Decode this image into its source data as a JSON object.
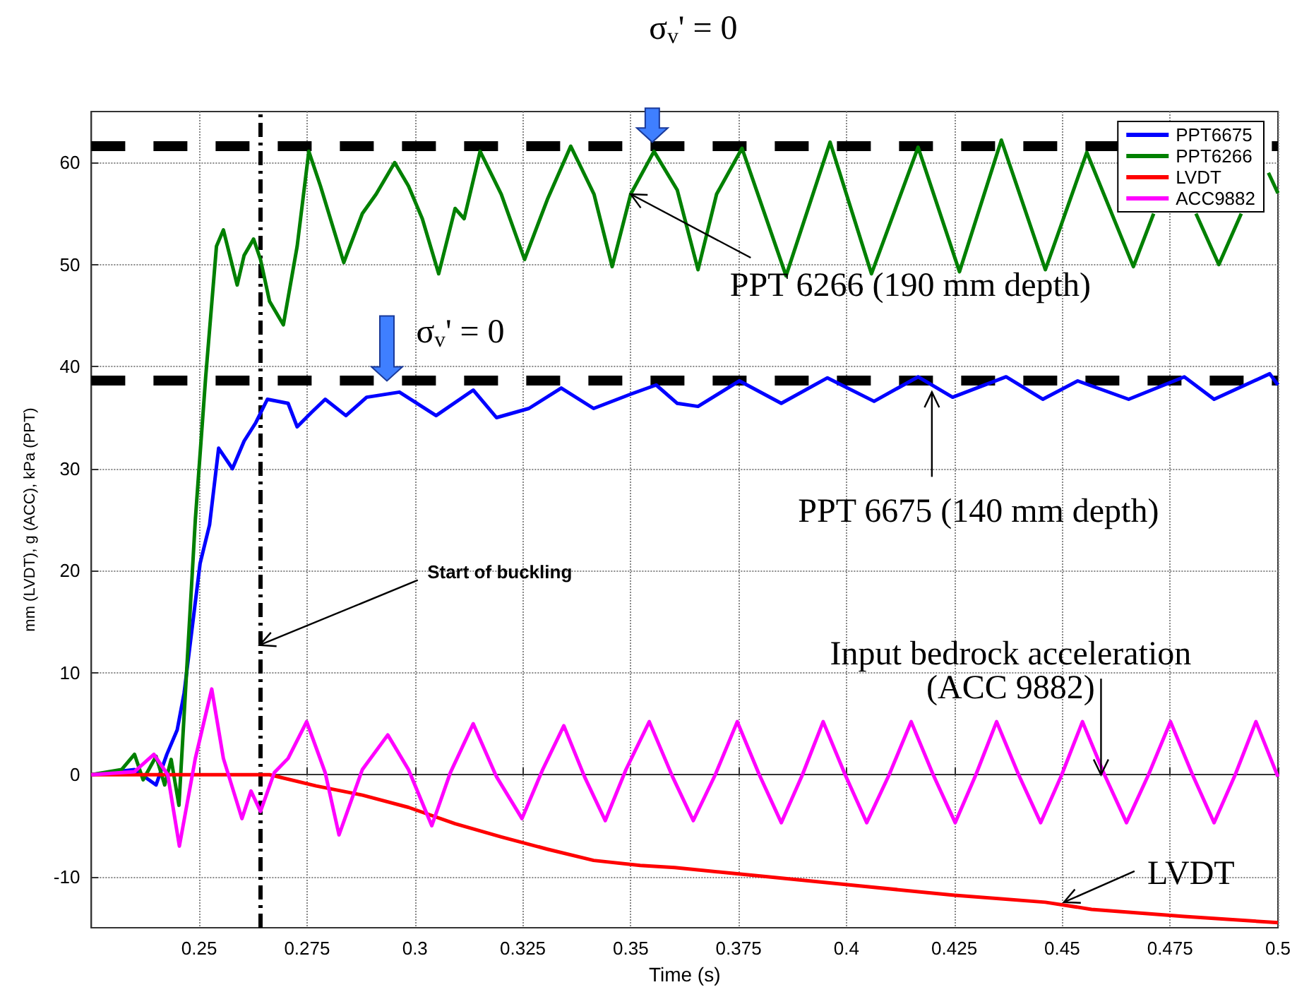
{
  "chart_data": {
    "type": "line",
    "xlabel": "Time (s)",
    "ylabel": "mm (LVDT), g (ACC), kPa (PPT)",
    "xlim": [
      0.225,
      0.5
    ],
    "xticks": [
      0.25,
      0.275,
      0.3,
      0.325,
      0.35,
      0.375,
      0.4,
      0.425,
      0.45,
      0.475,
      0.5
    ],
    "ylim": [
      -15,
      65
    ],
    "yticks": [
      -10,
      0,
      10,
      20,
      30,
      40,
      50,
      60
    ],
    "grid": true,
    "legend": "top right",
    "marker": "none",
    "line_style": "solid",
    "series": [
      {
        "name": "PPT6675",
        "color": "#0000ff",
        "x": [
          0.225,
          0.235,
          0.24,
          0.2425,
          0.2449,
          0.2465,
          0.2502,
          0.2524,
          0.2545,
          0.2577,
          0.2604,
          0.2631,
          0.2658,
          0.2706,
          0.2727,
          0.276,
          0.2792,
          0.284,
          0.2888,
          0.2964,
          0.3049,
          0.3135,
          0.3189,
          0.3264,
          0.3339,
          0.3414,
          0.35,
          0.3559,
          0.3608,
          0.3656,
          0.3752,
          0.3849,
          0.3956,
          0.4064,
          0.4166,
          0.4246,
          0.437,
          0.4455,
          0.4536,
          0.4654,
          0.4783,
          0.4852,
          0.4981,
          0.5
        ],
        "values": [
          0,
          0.5,
          -1,
          2,
          4.4,
          8,
          20.7,
          24.5,
          32,
          30,
          32.7,
          34.5,
          36.8,
          36.4,
          34.1,
          35.5,
          36.8,
          35.2,
          37,
          37.5,
          35.2,
          37.7,
          35,
          35.9,
          37.9,
          35.9,
          37.3,
          38.2,
          36.4,
          36.1,
          38.6,
          36.4,
          38.9,
          36.6,
          39,
          37,
          39,
          36.8,
          38.6,
          36.8,
          39,
          36.8,
          39.3,
          38.2
        ]
      },
      {
        "name": "PPT6266",
        "color": "#008000",
        "x": [
          0.225,
          0.232,
          0.235,
          0.237,
          0.24,
          0.242,
          0.2435,
          0.2453,
          0.2491,
          0.2515,
          0.254,
          0.2556,
          0.2588,
          0.2604,
          0.2626,
          0.2642,
          0.2663,
          0.2695,
          0.2727,
          0.2754,
          0.2781,
          0.2835,
          0.2878,
          0.291,
          0.2953,
          0.2985,
          0.3017,
          0.3055,
          0.3093,
          0.3114,
          0.3151,
          0.32,
          0.3254,
          0.3307,
          0.3361,
          0.3415,
          0.3457,
          0.35,
          0.3554,
          0.3608,
          0.3656,
          0.3699,
          0.3758,
          0.386,
          0.3962,
          0.4058,
          0.4166,
          0.4262,
          0.4359,
          0.4461,
          0.4557,
          0.4665,
          0.4712,
          0.4761,
          0.481,
          0.4863,
          0.4915,
          0.4955,
          0.4978,
          0.5
        ],
        "values": [
          0,
          0.5,
          2,
          -0.5,
          1.8,
          -1,
          1.5,
          -3,
          25,
          39,
          51.8,
          53.4,
          48,
          50.9,
          52.5,
          50.5,
          46.4,
          44.1,
          51.8,
          61.1,
          57.7,
          50.2,
          55,
          56.9,
          60,
          57.7,
          54.5,
          49.1,
          55.5,
          54.5,
          61.1,
          56.9,
          50.5,
          56.4,
          61.6,
          56.9,
          49.8,
          56.9,
          61.1,
          57.3,
          49.5,
          56.9,
          61.4,
          48.9,
          62,
          49.1,
          61.5,
          49.3,
          62.2,
          49.5,
          61,
          49.8,
          55,
          null,
          55,
          50,
          55,
          null,
          59,
          57
        ]
      },
      {
        "name": "LVDT",
        "color": "#ff0000",
        "x": [
          0.225,
          0.25,
          0.2663,
          0.2771,
          0.2878,
          0.2985,
          0.3093,
          0.32,
          0.3307,
          0.3414,
          0.3522,
          0.3602,
          0.3817,
          0.4031,
          0.4246,
          0.4461,
          0.4568,
          0.4783,
          0.5
        ],
        "values": [
          0,
          0,
          0,
          -1.1,
          -2,
          -3.2,
          -4.8,
          -6.1,
          -7.3,
          -8.4,
          -8.9,
          -9.1,
          -10,
          -10.9,
          -11.8,
          -12.5,
          -13.2,
          -13.9,
          -14.5
        ]
      },
      {
        "name": "ACC9882",
        "color": "#ff00ff",
        "x": [
          0.225,
          0.235,
          0.2395,
          0.2427,
          0.2454,
          0.2491,
          0.2529,
          0.2556,
          0.2599,
          0.262,
          0.2642,
          0.2674,
          0.2706,
          0.2749,
          0.2792,
          0.2824,
          0.2878,
          0.2937,
          0.2985,
          0.3039,
          0.3082,
          0.3135,
          0.3189,
          0.3248,
          0.3296,
          0.3345,
          0.3393,
          0.3441,
          0.3489,
          0.3543,
          0.3597,
          0.3645,
          0.3696,
          0.3747,
          0.3798,
          0.3849,
          0.3898,
          0.3946,
          0.3997,
          0.4047,
          0.4099,
          0.415,
          0.4201,
          0.4252,
          0.43,
          0.4348,
          0.4399,
          0.445,
          0.4499,
          0.4547,
          0.4598,
          0.4649,
          0.47,
          0.4751,
          0.4802,
          0.4852,
          0.4901,
          0.4949,
          0.5
        ],
        "values": [
          0,
          0.3,
          2,
          0,
          -7,
          1.6,
          8.4,
          1.6,
          -4.3,
          -1.6,
          -3.6,
          0.2,
          1.6,
          5.2,
          0.2,
          -5.9,
          0.5,
          3.9,
          0.5,
          -5,
          0.2,
          5,
          -0.2,
          -4.3,
          0.5,
          4.8,
          -0.2,
          -4.5,
          0.5,
          5.2,
          -0.2,
          -4.5,
          0,
          5.2,
          0,
          -4.7,
          0,
          5.2,
          0,
          -4.7,
          0,
          5.2,
          0,
          -4.7,
          0,
          5.2,
          0,
          -4.7,
          0,
          5.2,
          0,
          -4.7,
          0,
          5.2,
          0,
          -4.7,
          0,
          5.2,
          -0.2
        ]
      }
    ],
    "ref_lines": [
      {
        "axis": "y",
        "value": 61.7,
        "color": "#000000",
        "line_style": "dashed"
      },
      {
        "axis": "y",
        "value": 38.6,
        "color": "#000000",
        "line_style": "dashed"
      },
      {
        "axis": "x",
        "value": 0.264,
        "color": "#000000",
        "line_style": "dashed"
      }
    ],
    "annotations": [
      {
        "text": "σ$_{v}$' = 0",
        "x": 0.355,
        "y": 62
      },
      {
        "text": "σ$_{v}$' = 0",
        "x": 0.2935,
        "y": 38.6
      },
      {
        "text": "PPT 6266 (190 mm depth)",
        "x": 0.35,
        "y": 56.9
      },
      {
        "text": "PPT 6675 (140 mm depth)",
        "x": 0.4198,
        "y": 37.5
      },
      {
        "text": "Start of buckling",
        "x": 0.264,
        "y": 12.7
      },
      {
        "text": "Input bedrock acceleration\n(ACC 9882)",
        "x": 0.459,
        "y": 0
      },
      {
        "text": "LVDT",
        "x": 0.4504,
        "y": -12.5
      }
    ]
  }
}
